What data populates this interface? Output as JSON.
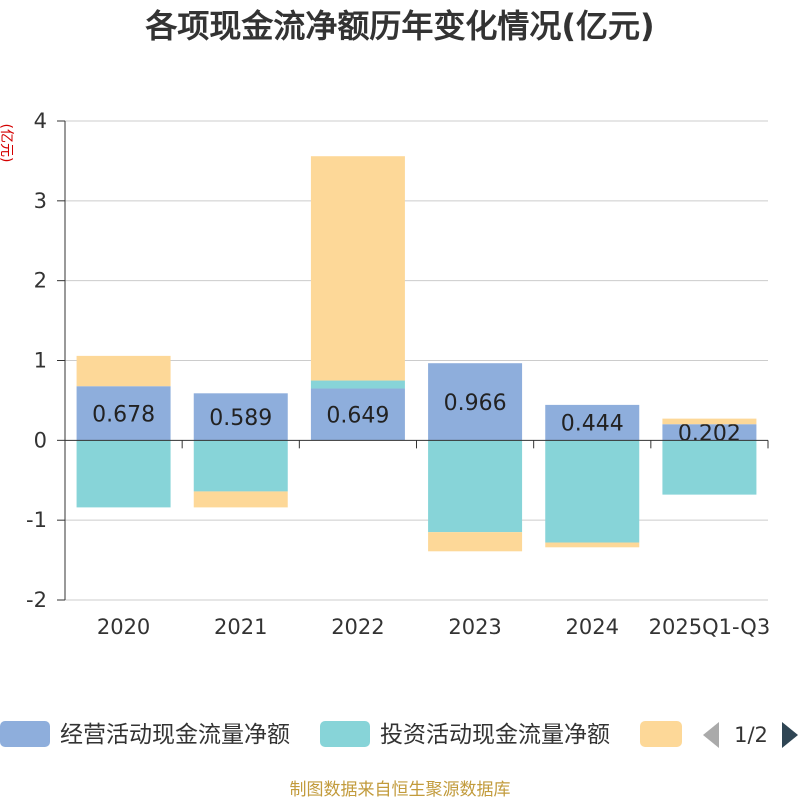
{
  "chart_data": {
    "type": "bar",
    "stacked": true,
    "title": "各项现金流净额历年变化情况(亿元)",
    "ylabel": "(亿元)",
    "ylabel_color": "#d40000",
    "categories": [
      "2020",
      "2021",
      "2022",
      "2023",
      "2024",
      "2025Q1-Q3"
    ],
    "ylim": [
      -2,
      4
    ],
    "yticks": [
      -2,
      -1,
      0,
      1,
      2,
      3,
      4
    ],
    "grid": true,
    "series": [
      {
        "name": "经营活动现金流量净额",
        "color": "#8eaedc",
        "values": [
          0.678,
          0.589,
          0.649,
          0.966,
          0.444,
          0.202
        ],
        "show_labels": true
      },
      {
        "name": "投资活动现金流量净额",
        "color": "#87d4d8",
        "values": [
          -0.84,
          -0.64,
          0.1,
          -1.15,
          -1.28,
          -0.68
        ],
        "show_labels": false
      },
      {
        "color": "#fdd898",
        "values": [
          0.38,
          -0.2,
          2.81,
          -0.24,
          -0.06,
          0.07
        ],
        "show_labels": false
      }
    ],
    "legend": {
      "position": "bottom",
      "page": "1/2"
    }
  },
  "footer": {
    "source": "制图数据来自恒生聚源数据库",
    "color": "#c29b3c"
  }
}
